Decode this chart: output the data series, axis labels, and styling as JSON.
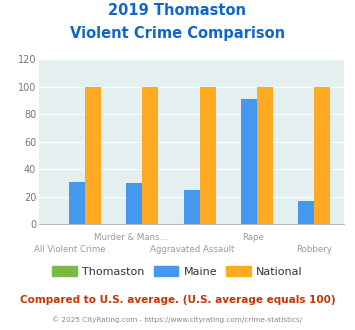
{
  "title_line1": "2019 Thomaston",
  "title_line2": "Violent Crime Comparison",
  "cat_line1": [
    "",
    "Murder & Mans...",
    "",
    "Rape",
    ""
  ],
  "cat_line2": [
    "All Violent Crime",
    "",
    "Aggravated Assault",
    "",
    "Robbery"
  ],
  "thomaston_values": [
    0,
    0,
    0,
    0,
    0
  ],
  "maine_values": [
    31,
    30,
    25,
    91,
    17
  ],
  "national_values": [
    100,
    100,
    100,
    100,
    100
  ],
  "thomaston_color": "#77bb44",
  "maine_color": "#4499ee",
  "national_color": "#ffaa22",
  "ylim": [
    0,
    120
  ],
  "yticks": [
    0,
    20,
    40,
    60,
    80,
    100,
    120
  ],
  "title_color": "#1166cc",
  "axis_bg_color": "#e4f0f0",
  "fig_bg_color": "#ffffff",
  "legend_labels": [
    "Thomaston",
    "Maine",
    "National"
  ],
  "footer_text": "Compared to U.S. average. (U.S. average equals 100)",
  "copyright_text": "© 2025 CityRating.com - https://www.cityrating.com/crime-statistics/",
  "footer_color": "#cc3300",
  "copyright_color": "#888888",
  "bar_width": 0.28
}
